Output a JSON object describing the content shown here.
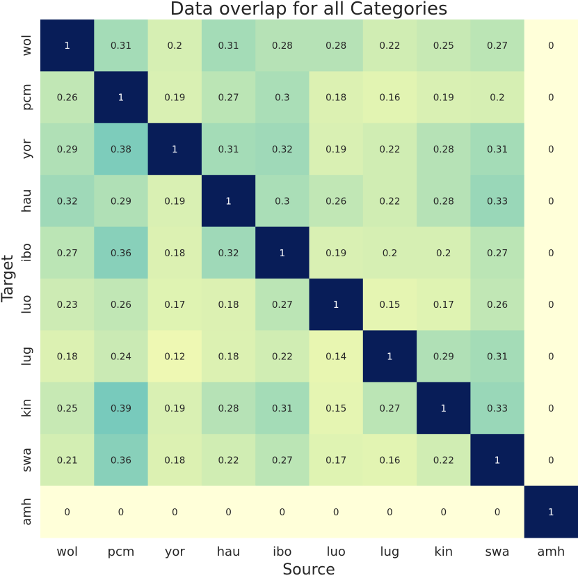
{
  "chart_data": {
    "type": "heatmap",
    "title": "Data overlap for all Categories",
    "xlabel": "Source",
    "ylabel": "Target",
    "x_categories": [
      "wol",
      "pcm",
      "yor",
      "hau",
      "ibo",
      "luo",
      "lug",
      "kin",
      "swa",
      "amh"
    ],
    "y_categories": [
      "wol",
      "pcm",
      "yor",
      "hau",
      "ibo",
      "luo",
      "lug",
      "kin",
      "swa",
      "amh"
    ],
    "values": [
      [
        1,
        0.31,
        0.2,
        0.31,
        0.28,
        0.28,
        0.22,
        0.25,
        0.27,
        0
      ],
      [
        0.26,
        1,
        0.19,
        0.27,
        0.3,
        0.18,
        0.16,
        0.19,
        0.2,
        0
      ],
      [
        0.29,
        0.38,
        1,
        0.31,
        0.32,
        0.19,
        0.22,
        0.28,
        0.31,
        0
      ],
      [
        0.32,
        0.29,
        0.19,
        1,
        0.3,
        0.26,
        0.22,
        0.28,
        0.33,
        0
      ],
      [
        0.27,
        0.36,
        0.18,
        0.32,
        1,
        0.19,
        0.2,
        0.2,
        0.27,
        0
      ],
      [
        0.23,
        0.26,
        0.17,
        0.18,
        0.27,
        1,
        0.15,
        0.17,
        0.26,
        0
      ],
      [
        0.18,
        0.24,
        0.12,
        0.18,
        0.22,
        0.14,
        1,
        0.29,
        0.31,
        0
      ],
      [
        0.25,
        0.39,
        0.19,
        0.28,
        0.31,
        0.15,
        0.27,
        1,
        0.33,
        0
      ],
      [
        0.21,
        0.36,
        0.18,
        0.22,
        0.27,
        0.17,
        0.16,
        0.22,
        1,
        0
      ],
      [
        0,
        0,
        0,
        0,
        0,
        0,
        0,
        0,
        0,
        1
      ]
    ],
    "value_range": [
      0,
      1
    ],
    "colormap": "YlGnBu",
    "annotated": true
  }
}
